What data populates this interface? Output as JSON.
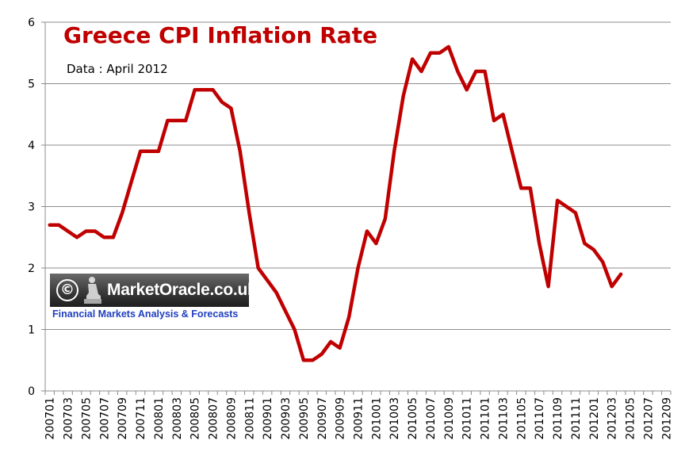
{
  "chart_data": {
    "type": "line",
    "title": "Greece CPI Inflation Rate",
    "subtitle": "Data : April 2012",
    "xlabel": "",
    "ylabel": "",
    "ylim": [
      0,
      6
    ],
    "yticks": [
      "0",
      "1",
      "2",
      "3",
      "4",
      "5",
      "6"
    ],
    "grid": true,
    "legend": "none",
    "x_tick_labels": [
      "200701",
      "200703",
      "200705",
      "200707",
      "200709",
      "200711",
      "200801",
      "200803",
      "200805",
      "200807",
      "200809",
      "200811",
      "200901",
      "200903",
      "200905",
      "200907",
      "200909",
      "200911",
      "201001",
      "201003",
      "201005",
      "201007",
      "201009",
      "201011",
      "201101",
      "201103",
      "201105",
      "201107",
      "201109",
      "201111",
      "201201",
      "201203",
      "201205",
      "201207",
      "201209"
    ],
    "series": [
      {
        "name": "Greece CPI Inflation Rate",
        "color": "#c00000",
        "x": [
          "200701",
          "200702",
          "200703",
          "200704",
          "200705",
          "200706",
          "200707",
          "200708",
          "200709",
          "200710",
          "200711",
          "200712",
          "200801",
          "200802",
          "200803",
          "200804",
          "200805",
          "200806",
          "200807",
          "200808",
          "200809",
          "200810",
          "200811",
          "200812",
          "200901",
          "200902",
          "200903",
          "200904",
          "200905",
          "200906",
          "200907",
          "200908",
          "200909",
          "200910",
          "200911",
          "200912",
          "201001",
          "201002",
          "201003",
          "201004",
          "201005",
          "201006",
          "201007",
          "201008",
          "201009",
          "201010",
          "201011",
          "201012",
          "201101",
          "201102",
          "201103",
          "201104",
          "201105",
          "201106",
          "201107",
          "201108",
          "201109",
          "201110",
          "201111",
          "201112",
          "201201",
          "201202",
          "201203",
          "201204"
        ],
        "values": [
          2.7,
          2.7,
          2.6,
          2.5,
          2.6,
          2.6,
          2.5,
          2.5,
          2.9,
          3.4,
          3.9,
          3.9,
          3.9,
          4.4,
          4.4,
          4.4,
          4.9,
          4.9,
          4.9,
          4.7,
          4.6,
          3.9,
          2.9,
          2.0,
          1.8,
          1.6,
          1.3,
          1.0,
          0.5,
          0.5,
          0.6,
          0.8,
          0.7,
          1.2,
          2.0,
          2.6,
          2.4,
          2.8,
          3.9,
          4.8,
          5.4,
          5.2,
          5.5,
          5.5,
          5.6,
          5.2,
          4.9,
          5.2,
          5.2,
          4.4,
          4.5,
          3.9,
          3.3,
          3.3,
          2.4,
          1.7,
          3.1,
          3.0,
          2.9,
          2.4,
          2.3,
          2.1,
          1.7,
          1.9
        ]
      }
    ]
  },
  "watermark": {
    "copyright_symbol": "©",
    "brand": "MarketOracle.co.uk",
    "tagline": "Financial Markets Analysis & Forecasts"
  }
}
